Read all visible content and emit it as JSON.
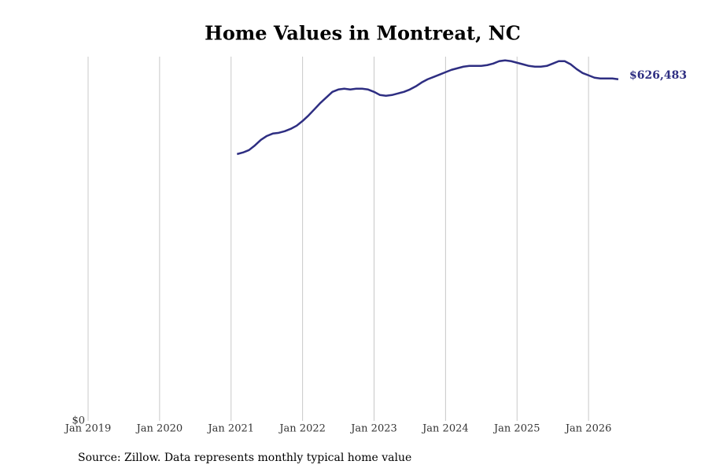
{
  "chart_data": {
    "type": "line",
    "title": "Home Values in Montreat, NC",
    "source": "Source: Zillow. Data represents monthly typical home value",
    "x": [
      "2021-02",
      "2021-03",
      "2021-04",
      "2021-05",
      "2021-06",
      "2021-07",
      "2021-08",
      "2021-09",
      "2021-10",
      "2021-11",
      "2021-12",
      "2022-01",
      "2022-02",
      "2022-03",
      "2022-04",
      "2022-05",
      "2022-06",
      "2022-07",
      "2022-08",
      "2022-09",
      "2022-10",
      "2022-11",
      "2022-12",
      "2023-01",
      "2023-02",
      "2023-03",
      "2023-04",
      "2023-05",
      "2023-06",
      "2023-07",
      "2023-08",
      "2023-09",
      "2023-10",
      "2023-11",
      "2023-12",
      "2024-01",
      "2024-02",
      "2024-03",
      "2024-04",
      "2024-05",
      "2024-06",
      "2024-07",
      "2024-08",
      "2024-09",
      "2024-10",
      "2024-11",
      "2024-12",
      "2025-01",
      "2025-02",
      "2025-03",
      "2025-04",
      "2025-05",
      "2025-06",
      "2025-07",
      "2025-08",
      "2025-09",
      "2025-10",
      "2025-11",
      "2025-12",
      "2026-01",
      "2026-02",
      "2026-03",
      "2026-04",
      "2026-05",
      "2026-06"
    ],
    "series": [
      {
        "color": "#2e2e82",
        "values": [
          489300,
          492200,
          496600,
          505200,
          515300,
          522500,
          526900,
          528300,
          531200,
          535500,
          541300,
          550000,
          560100,
          571600,
          583200,
          593300,
          603400,
          607700,
          609200,
          607700,
          609200,
          609200,
          607700,
          603400,
          597600,
          596200,
          597600,
          600500,
          603400,
          607700,
          613500,
          620700,
          626500,
          630800,
          635100,
          639500,
          643800,
          646700,
          649600,
          651000,
          651000,
          651000,
          652500,
          655300,
          659700,
          661100,
          659700,
          656800,
          653900,
          651000,
          649600,
          649600,
          651000,
          655300,
          659700,
          659700,
          653900,
          645200,
          638000,
          633700,
          629400,
          627900,
          627900,
          627900,
          626483
        ],
        "value_labels": [
          null,
          null,
          null,
          null,
          null,
          null,
          null,
          null,
          null,
          null,
          null,
          null,
          null,
          null,
          null,
          null,
          null,
          null,
          null,
          null,
          null,
          null,
          null,
          null,
          null,
          null,
          null,
          null,
          null,
          null,
          null,
          null,
          null,
          null,
          null,
          null,
          null,
          null,
          null,
          null,
          null,
          null,
          null,
          null,
          null,
          null,
          null,
          null,
          null,
          null,
          null,
          null,
          null,
          null,
          null,
          null,
          null,
          null,
          null,
          null,
          null,
          null,
          null,
          null,
          "$626,483"
        ]
      }
    ],
    "xlim": [
      "2019-01",
      "2026-06"
    ],
    "xticks": [
      {
        "value": "2019-01",
        "label": "Jan 2019"
      },
      {
        "value": "2020-01",
        "label": "Jan 2020"
      },
      {
        "value": "2021-01",
        "label": "Jan 2021"
      },
      {
        "value": "2022-01",
        "label": "Jan 2022"
      },
      {
        "value": "2023-01",
        "label": "Jan 2023"
      },
      {
        "value": "2024-01",
        "label": "Jan 2024"
      },
      {
        "value": "2025-01",
        "label": "Jan 2025"
      },
      {
        "value": "2026-01",
        "label": "Jan 2026"
      }
    ],
    "ylim": [
      0,
      668000
    ],
    "yticks": [
      {
        "value": 0,
        "label": "$0"
      }
    ],
    "grid": "x"
  }
}
